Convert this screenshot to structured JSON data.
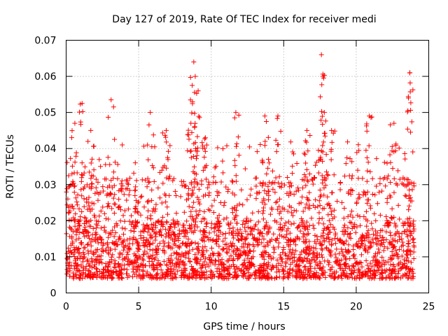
{
  "chart_data": {
    "type": "scatter",
    "title": "Day 127 of 2019, Rate Of TEC Index for receiver medi",
    "xlabel": "GPS time / hours",
    "ylabel": "ROTI / TECUs",
    "xlim": [
      0,
      25
    ],
    "ylim": [
      0,
      0.07
    ],
    "xticks": [
      0,
      5,
      10,
      15,
      20,
      25
    ],
    "xtick_labels": [
      "0",
      "5",
      "10",
      "15",
      "20",
      "25"
    ],
    "yticks": [
      0,
      0.01,
      0.02,
      0.03,
      0.04,
      0.05,
      0.06,
      0.07
    ],
    "ytick_labels": [
      "0",
      "0.01",
      "0.02",
      "0.03",
      "0.04",
      "0.05",
      "0.06",
      "0.07"
    ],
    "grid": true,
    "marker": "+",
    "color": "#ff0000",
    "x_data_range": [
      0,
      24
    ],
    "typical_range": [
      0.004,
      0.02
    ],
    "notable_peaks": [
      {
        "x": 0.4,
        "y": 0.033
      },
      {
        "x": 0.6,
        "y": 0.047
      },
      {
        "x": 1.1,
        "y": 0.0525
      },
      {
        "x": 1.7,
        "y": 0.045
      },
      {
        "x": 3.1,
        "y": 0.0535
      },
      {
        "x": 5.8,
        "y": 0.05
      },
      {
        "x": 6.9,
        "y": 0.045
      },
      {
        "x": 8.6,
        "y": 0.047
      },
      {
        "x": 8.8,
        "y": 0.064
      },
      {
        "x": 8.9,
        "y": 0.06
      },
      {
        "x": 9.1,
        "y": 0.056
      },
      {
        "x": 9.6,
        "y": 0.043
      },
      {
        "x": 11.7,
        "y": 0.05
      },
      {
        "x": 13.7,
        "y": 0.049
      },
      {
        "x": 14.6,
        "y": 0.049
      },
      {
        "x": 16.6,
        "y": 0.045
      },
      {
        "x": 17.6,
        "y": 0.066
      },
      {
        "x": 17.7,
        "y": 0.06
      },
      {
        "x": 17.8,
        "y": 0.05
      },
      {
        "x": 18.3,
        "y": 0.045
      },
      {
        "x": 20.9,
        "y": 0.049
      },
      {
        "x": 22.6,
        "y": 0.047
      },
      {
        "x": 23.7,
        "y": 0.061
      },
      {
        "x": 23.6,
        "y": 0.054
      }
    ]
  }
}
